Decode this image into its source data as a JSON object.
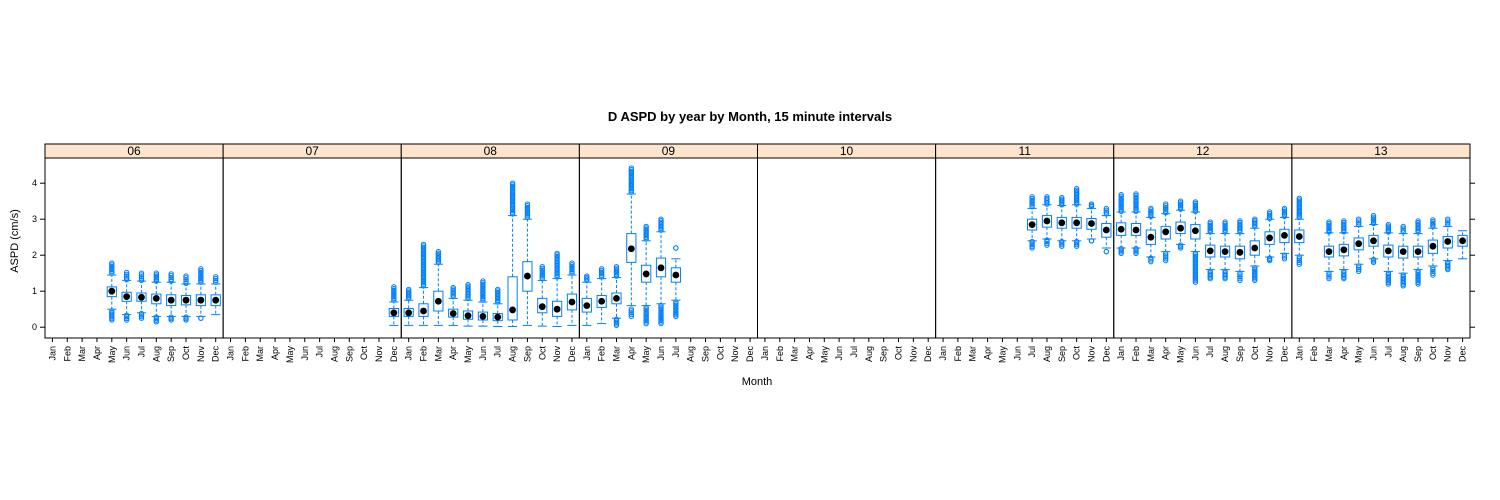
{
  "chart_data": {
    "type": "box",
    "title": "D ASPD by year by Month, 15 minute intervals",
    "xlabel": "Month",
    "ylabel": "ASPD (cm/s)",
    "ylim": [
      -0.3,
      4.7
    ],
    "y_ticks": [
      0,
      1,
      2,
      3,
      4
    ],
    "months": [
      "Jan",
      "Feb",
      "Mar",
      "Apr",
      "May",
      "Jun",
      "Jul",
      "Aug",
      "Sep",
      "Oct",
      "Nov",
      "Dec"
    ],
    "colors": {
      "box": "#0080ff",
      "median": "#000000",
      "strip": "#ffe5cc",
      "border": "#000000"
    },
    "panels": [
      {
        "year": "06",
        "boxes": [
          {
            "month": 5,
            "q1": 0.85,
            "median": 1.0,
            "q3": 1.12,
            "wlo": 0.5,
            "whi": 1.45,
            "out_lo": [
              0.2,
              0.45
            ],
            "out_hi": [
              1.5,
              1.78
            ]
          },
          {
            "month": 6,
            "q1": 0.72,
            "median": 0.85,
            "q3": 0.97,
            "wlo": 0.35,
            "whi": 1.3,
            "out_lo": [
              0.2,
              0.33
            ],
            "out_hi": [
              1.32,
              1.52
            ]
          },
          {
            "month": 7,
            "q1": 0.72,
            "median": 0.83,
            "q3": 0.95,
            "wlo": 0.4,
            "whi": 1.28,
            "out_lo": [
              0.25,
              0.38
            ],
            "out_hi": [
              1.3,
              1.5
            ]
          },
          {
            "month": 8,
            "q1": 0.65,
            "median": 0.8,
            "q3": 0.92,
            "wlo": 0.3,
            "whi": 1.25,
            "out_lo": [
              0.15,
              0.28
            ],
            "out_hi": [
              1.28,
              1.5
            ]
          },
          {
            "month": 9,
            "q1": 0.6,
            "median": 0.75,
            "q3": 0.9,
            "wlo": 0.3,
            "whi": 1.25,
            "out_lo": [
              0.2,
              0.28
            ],
            "out_hi": [
              1.28,
              1.48
            ]
          },
          {
            "month": 10,
            "q1": 0.62,
            "median": 0.75,
            "q3": 0.88,
            "wlo": 0.3,
            "whi": 1.2,
            "out_lo": [
              0.2,
              0.28
            ],
            "out_hi": [
              1.22,
              1.42
            ]
          },
          {
            "month": 11,
            "q1": 0.6,
            "median": 0.75,
            "q3": 0.9,
            "wlo": 0.3,
            "whi": 1.2,
            "out_lo": [
              0.25
            ],
            "out_hi": [
              1.25,
              1.62
            ]
          },
          {
            "month": 12,
            "q1": 0.6,
            "median": 0.75,
            "q3": 0.9,
            "wlo": 0.35,
            "whi": 1.2,
            "out_lo": [],
            "out_hi": [
              1.25,
              1.4
            ]
          }
        ]
      },
      {
        "year": "07",
        "boxes": [
          {
            "month": 12,
            "q1": 0.3,
            "median": 0.4,
            "q3": 0.52,
            "wlo": 0.05,
            "whi": 0.7,
            "out_lo": [],
            "out_hi": [
              0.75,
              1.12
            ]
          }
        ]
      },
      {
        "year": "08",
        "boxes": [
          {
            "month": 1,
            "q1": 0.3,
            "median": 0.4,
            "q3": 0.52,
            "wlo": 0.05,
            "whi": 0.75,
            "out_lo": [],
            "out_hi": [
              0.8,
              1.05
            ]
          },
          {
            "month": 2,
            "q1": 0.3,
            "median": 0.45,
            "q3": 0.65,
            "wlo": 0.05,
            "whi": 1.1,
            "out_lo": [],
            "out_hi": [
              1.15,
              2.3
            ]
          },
          {
            "month": 3,
            "q1": 0.45,
            "median": 0.72,
            "q3": 1.0,
            "wlo": 0.05,
            "whi": 1.75,
            "out_lo": [],
            "out_hi": [
              1.8,
              2.1
            ]
          },
          {
            "month": 4,
            "q1": 0.28,
            "median": 0.38,
            "q3": 0.5,
            "wlo": 0.05,
            "whi": 0.8,
            "out_lo": [],
            "out_hi": [
              0.85,
              1.1
            ]
          },
          {
            "month": 5,
            "q1": 0.22,
            "median": 0.32,
            "q3": 0.45,
            "wlo": 0.03,
            "whi": 0.75,
            "out_lo": [],
            "out_hi": [
              0.8,
              1.18
            ]
          },
          {
            "month": 6,
            "q1": 0.2,
            "median": 0.3,
            "q3": 0.42,
            "wlo": 0.03,
            "whi": 0.7,
            "out_lo": [],
            "out_hi": [
              0.75,
              1.28
            ]
          },
          {
            "month": 7,
            "q1": 0.18,
            "median": 0.28,
            "q3": 0.38,
            "wlo": 0.02,
            "whi": 0.65,
            "out_lo": [],
            "out_hi": [
              0.7,
              1.05
            ]
          },
          {
            "month": 8,
            "q1": 0.2,
            "median": 0.48,
            "q3": 1.4,
            "wlo": 0.02,
            "whi": 3.1,
            "out_lo": [],
            "out_hi": [
              3.15,
              4.0
            ]
          },
          {
            "month": 9,
            "q1": 1.0,
            "median": 1.42,
            "q3": 1.82,
            "wlo": 0.05,
            "whi": 3.0,
            "out_lo": [],
            "out_hi": [
              3.05,
              3.42
            ]
          },
          {
            "month": 10,
            "q1": 0.4,
            "median": 0.57,
            "q3": 0.8,
            "wlo": 0.03,
            "whi": 1.3,
            "out_lo": [],
            "out_hi": [
              1.35,
              1.68
            ]
          },
          {
            "month": 11,
            "q1": 0.3,
            "median": 0.5,
            "q3": 0.72,
            "wlo": 0.02,
            "whi": 1.35,
            "out_lo": [],
            "out_hi": [
              1.4,
              2.05
            ]
          },
          {
            "month": 12,
            "q1": 0.48,
            "median": 0.7,
            "q3": 0.92,
            "wlo": 0.05,
            "whi": 1.45,
            "out_lo": [],
            "out_hi": [
              1.5,
              1.78
            ]
          }
        ]
      },
      {
        "year": "09",
        "boxes": [
          {
            "month": 1,
            "q1": 0.42,
            "median": 0.6,
            "q3": 0.8,
            "wlo": 0.05,
            "whi": 1.25,
            "out_lo": [],
            "out_hi": [
              1.3,
              1.42
            ]
          },
          {
            "month": 2,
            "q1": 0.55,
            "median": 0.72,
            "q3": 0.88,
            "wlo": 0.1,
            "whi": 1.35,
            "out_lo": [],
            "out_hi": [
              1.4,
              1.62
            ]
          },
          {
            "month": 3,
            "q1": 0.65,
            "median": 0.8,
            "q3": 0.95,
            "wlo": 0.25,
            "whi": 1.38,
            "out_lo": [
              0.05,
              0.22
            ],
            "out_hi": [
              1.42,
              1.68
            ]
          },
          {
            "month": 4,
            "q1": 1.8,
            "median": 2.18,
            "q3": 2.6,
            "wlo": 0.6,
            "whi": 3.7,
            "out_lo": [
              0.3,
              0.5
            ],
            "out_hi": [
              3.75,
              4.42
            ]
          },
          {
            "month": 5,
            "q1": 1.25,
            "median": 1.48,
            "q3": 1.72,
            "wlo": 0.6,
            "whi": 2.4,
            "out_lo": [
              0.1,
              0.55
            ],
            "out_hi": [
              2.45,
              2.8
            ]
          },
          {
            "month": 6,
            "q1": 1.4,
            "median": 1.65,
            "q3": 1.92,
            "wlo": 0.65,
            "whi": 2.65,
            "out_lo": [
              0.1,
              0.6
            ],
            "out_hi": [
              2.7,
              3.0
            ]
          },
          {
            "month": 7,
            "q1": 1.25,
            "median": 1.45,
            "q3": 1.65,
            "wlo": 0.75,
            "whi": 1.9,
            "out_lo": [
              0.3,
              0.7
            ],
            "out_hi": [
              2.2
            ]
          }
        ]
      },
      {
        "year": "10",
        "boxes": []
      },
      {
        "year": "11",
        "boxes": [
          {
            "month": 7,
            "q1": 2.7,
            "median": 2.85,
            "q3": 3.0,
            "wlo": 2.4,
            "whi": 3.3,
            "out_lo": [
              2.2,
              2.38
            ],
            "out_hi": [
              3.35,
              3.62
            ]
          },
          {
            "month": 8,
            "q1": 2.78,
            "median": 2.95,
            "q3": 3.1,
            "wlo": 2.45,
            "whi": 3.4,
            "out_lo": [
              2.28,
              2.42
            ],
            "out_hi": [
              3.42,
              3.62
            ]
          },
          {
            "month": 9,
            "q1": 2.75,
            "median": 2.9,
            "q3": 3.05,
            "wlo": 2.4,
            "whi": 3.38,
            "out_lo": [
              2.25,
              2.38
            ],
            "out_hi": [
              3.4,
              3.6
            ]
          },
          {
            "month": 10,
            "q1": 2.75,
            "median": 2.9,
            "q3": 3.05,
            "wlo": 2.4,
            "whi": 3.4,
            "out_lo": [
              2.25,
              2.38
            ],
            "out_hi": [
              3.42,
              3.85
            ]
          },
          {
            "month": 11,
            "q1": 2.72,
            "median": 2.88,
            "q3": 3.02,
            "wlo": 2.45,
            "whi": 3.3,
            "out_lo": [
              2.4
            ],
            "out_hi": [
              3.35,
              3.42
            ]
          },
          {
            "month": 12,
            "q1": 2.5,
            "median": 2.7,
            "q3": 2.88,
            "wlo": 2.2,
            "whi": 3.1,
            "out_lo": [
              2.1
            ],
            "out_hi": [
              3.15,
              3.3
            ]
          }
        ]
      },
      {
        "year": "12",
        "boxes": [
          {
            "month": 1,
            "q1": 2.55,
            "median": 2.72,
            "q3": 2.9,
            "wlo": 2.2,
            "whi": 3.2,
            "out_lo": [
              2.05,
              2.18
            ],
            "out_hi": [
              3.22,
              3.68
            ]
          },
          {
            "month": 2,
            "q1": 2.55,
            "median": 2.7,
            "q3": 2.88,
            "wlo": 2.2,
            "whi": 3.2,
            "out_lo": [
              2.05,
              2.18
            ],
            "out_hi": [
              3.22,
              3.7
            ]
          },
          {
            "month": 3,
            "q1": 2.3,
            "median": 2.5,
            "q3": 2.7,
            "wlo": 1.95,
            "whi": 3.05,
            "out_lo": [
              1.82,
              1.92
            ],
            "out_hi": [
              3.08,
              3.3
            ]
          },
          {
            "month": 4,
            "q1": 2.45,
            "median": 2.65,
            "q3": 2.8,
            "wlo": 2.1,
            "whi": 3.15,
            "out_lo": [
              1.85,
              2.05
            ],
            "out_hi": [
              3.18,
              3.42
            ]
          },
          {
            "month": 5,
            "q1": 2.6,
            "median": 2.75,
            "q3": 2.92,
            "wlo": 2.3,
            "whi": 3.25,
            "out_lo": [
              2.2,
              2.28
            ],
            "out_hi": [
              3.28,
              3.5
            ]
          },
          {
            "month": 6,
            "q1": 2.45,
            "median": 2.68,
            "q3": 2.85,
            "wlo": 2.1,
            "whi": 3.2,
            "out_lo": [
              1.25,
              2.05
            ],
            "out_hi": [
              3.22,
              3.48
            ]
          },
          {
            "month": 7,
            "q1": 1.95,
            "median": 2.12,
            "q3": 2.28,
            "wlo": 1.6,
            "whi": 2.6,
            "out_lo": [
              1.35,
              1.55
            ],
            "out_hi": [
              2.65,
              2.92
            ]
          },
          {
            "month": 8,
            "q1": 1.95,
            "median": 2.1,
            "q3": 2.25,
            "wlo": 1.6,
            "whi": 2.6,
            "out_lo": [
              1.35,
              1.55
            ],
            "out_hi": [
              2.65,
              2.92
            ]
          },
          {
            "month": 9,
            "q1": 1.9,
            "median": 2.08,
            "q3": 2.25,
            "wlo": 1.55,
            "whi": 2.6,
            "out_lo": [
              1.3,
              1.5
            ],
            "out_hi": [
              2.65,
              2.95
            ]
          },
          {
            "month": 10,
            "q1": 2.0,
            "median": 2.2,
            "q3": 2.4,
            "wlo": 1.7,
            "whi": 2.75,
            "out_lo": [
              1.3,
              1.65
            ],
            "out_hi": [
              2.8,
              3.0
            ]
          },
          {
            "month": 11,
            "q1": 2.3,
            "median": 2.48,
            "q3": 2.65,
            "wlo": 1.95,
            "whi": 3.0,
            "out_lo": [
              1.85,
              1.92
            ],
            "out_hi": [
              3.02,
              3.2
            ]
          },
          {
            "month": 12,
            "q1": 2.35,
            "median": 2.55,
            "q3": 2.72,
            "wlo": 2.05,
            "whi": 3.05,
            "out_lo": [
              1.9,
              2.0
            ],
            "out_hi": [
              3.08,
              3.3
            ]
          }
        ]
      },
      {
        "year": "13",
        "boxes": [
          {
            "month": 1,
            "q1": 2.35,
            "median": 2.52,
            "q3": 2.7,
            "wlo": 2.0,
            "whi": 3.0,
            "out_lo": [
              1.75,
              1.95
            ],
            "out_hi": [
              3.05,
              3.58
            ]
          },
          {
            "month": 3,
            "q1": 1.95,
            "median": 2.1,
            "q3": 2.25,
            "wlo": 1.55,
            "whi": 2.62,
            "out_lo": [
              1.35,
              1.5
            ],
            "out_hi": [
              2.65,
              2.92
            ]
          },
          {
            "month": 4,
            "q1": 1.98,
            "median": 2.15,
            "q3": 2.3,
            "wlo": 1.6,
            "whi": 2.62,
            "out_lo": [
              1.35,
              1.55
            ],
            "out_hi": [
              2.65,
              2.95
            ]
          },
          {
            "month": 5,
            "q1": 2.15,
            "median": 2.32,
            "q3": 2.48,
            "wlo": 1.75,
            "whi": 2.8,
            "out_lo": [
              1.55,
              1.7
            ],
            "out_hi": [
              2.85,
              3.0
            ]
          },
          {
            "month": 6,
            "q1": 2.25,
            "median": 2.4,
            "q3": 2.55,
            "wlo": 1.9,
            "whi": 2.85,
            "out_lo": [
              1.8,
              1.88
            ],
            "out_hi": [
              2.88,
              3.1
            ]
          },
          {
            "month": 7,
            "q1": 1.95,
            "median": 2.12,
            "q3": 2.28,
            "wlo": 1.55,
            "whi": 2.62,
            "out_lo": [
              1.2,
              1.5
            ],
            "out_hi": [
              2.65,
              2.85
            ]
          },
          {
            "month": 8,
            "q1": 1.92,
            "median": 2.1,
            "q3": 2.25,
            "wlo": 1.5,
            "whi": 2.6,
            "out_lo": [
              1.15,
              1.45
            ],
            "out_hi": [
              2.65,
              2.8
            ]
          },
          {
            "month": 9,
            "q1": 1.95,
            "median": 2.1,
            "q3": 2.25,
            "wlo": 1.6,
            "whi": 2.6,
            "out_lo": [
              1.2,
              1.55
            ],
            "out_hi": [
              2.65,
              2.95
            ]
          },
          {
            "month": 10,
            "q1": 2.05,
            "median": 2.25,
            "q3": 2.42,
            "wlo": 1.7,
            "whi": 2.75,
            "out_lo": [
              1.45,
              1.65
            ],
            "out_hi": [
              2.8,
              2.98
            ]
          },
          {
            "month": 11,
            "q1": 2.2,
            "median": 2.38,
            "q3": 2.52,
            "wlo": 1.85,
            "whi": 2.8,
            "out_lo": [
              1.6,
              1.8
            ],
            "out_hi": [
              2.85,
              3.0
            ]
          },
          {
            "month": 12,
            "q1": 2.25,
            "median": 2.4,
            "q3": 2.55,
            "wlo": 1.9,
            "whi": 2.68,
            "out_lo": [],
            "out_hi": []
          }
        ]
      }
    ]
  }
}
